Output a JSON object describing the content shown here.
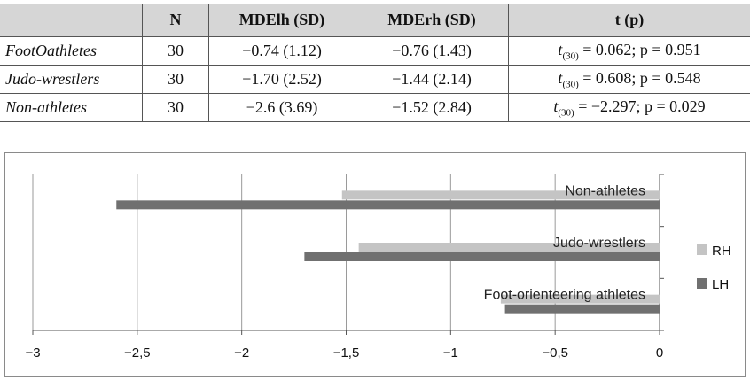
{
  "table": {
    "headers": [
      "",
      "N",
      "MDElh (SD)",
      "MDErh (SD)",
      "t (p)"
    ],
    "rows": [
      {
        "group": "FootOathletes",
        "n": "30",
        "mdelh": "−0.74 (1.12)",
        "mderh": "−0.76 (1.43)",
        "t_sym": "t",
        "t_df": "(30)",
        "t_rest": " = 0.062; p = 0.951"
      },
      {
        "group": "Judo-wrestlers",
        "n": "30",
        "mdelh": "−1.70 (2.52)",
        "mderh": "−1.44 (2.14)",
        "t_sym": "t",
        "t_df": "(30)",
        "t_rest": " = 0.608; p = 0.548"
      },
      {
        "group": "Non-athletes",
        "n": "30",
        "mdelh": "−2.6 (3.69)",
        "mderh": "−1.52 (2.84)",
        "t_sym": "t",
        "t_df": "(30)",
        "t_rest": " = −2.297; p = 0.029"
      }
    ]
  },
  "chart_data": {
    "type": "bar",
    "orientation": "horizontal",
    "categories": [
      "Foot-orienteering athletes",
      "Judo-wrestlers",
      "Non-athletes"
    ],
    "series": [
      {
        "name": "RH",
        "values": [
          -0.76,
          -1.44,
          -1.52
        ],
        "color": "#c4c4c4"
      },
      {
        "name": "LH",
        "values": [
          -0.74,
          -1.7,
          -2.6
        ],
        "color": "#707070"
      }
    ],
    "xlim": [
      -3,
      0
    ],
    "ticks": [
      -3,
      -2.5,
      -2,
      -1.5,
      -1,
      -0.5,
      0
    ],
    "tick_labels": [
      "−3",
      "−2,5",
      "−2",
      "−1,5",
      "−1",
      "−0,5",
      "0"
    ],
    "grid": "vertical",
    "legend": "right"
  }
}
